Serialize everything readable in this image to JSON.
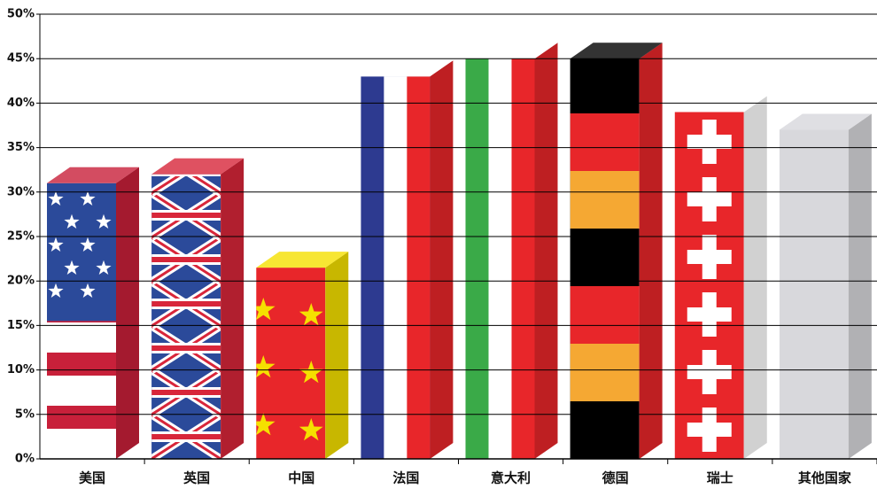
{
  "chart_data": {
    "type": "bar",
    "categories": [
      "美国",
      "英国",
      "中国",
      "法国",
      "意大利",
      "德国",
      "瑞士",
      "其他国家"
    ],
    "values": [
      31,
      32,
      21.5,
      43,
      45,
      45,
      39,
      37
    ],
    "colors": [
      [
        "#2b4a9a",
        "#ffffff",
        "#c8203a"
      ],
      [
        "#2b4a9a",
        "#ffffff",
        "#d8263a"
      ],
      [
        "#e8262a",
        "#f5e000"
      ],
      [
        "#2d3a90",
        "#ffffff",
        "#e8262a"
      ],
      [
        "#3aaa48",
        "#ffffff",
        "#e8262a"
      ],
      [
        "#000000",
        "#f5a833",
        "#e8262a"
      ],
      [
        "#e8262a",
        "#ffffff"
      ],
      [
        "#d8d8dc"
      ]
    ],
    "ylim": [
      0,
      50
    ],
    "yticks": [
      {
        "value": 0,
        "label": "0%"
      },
      {
        "value": 5,
        "label": "5%"
      },
      {
        "value": 10,
        "label": "10%"
      },
      {
        "value": 15,
        "label": "15%"
      },
      {
        "value": 20,
        "label": "20%"
      },
      {
        "value": 25,
        "label": "25%"
      },
      {
        "value": 30,
        "label": "30%"
      },
      {
        "value": 35,
        "label": "35%"
      },
      {
        "value": 40,
        "label": "40%"
      },
      {
        "value": 45,
        "label": "45%"
      },
      {
        "value": 50,
        "label": "50%"
      }
    ],
    "grid": true
  }
}
